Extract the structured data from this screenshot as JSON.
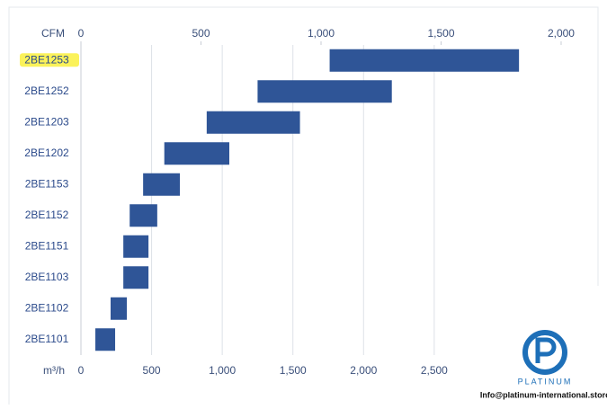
{
  "chart_data": {
    "type": "range-bar",
    "categories": [
      "2BE1253",
      "2BE1252",
      "2BE1203",
      "2BE1202",
      "2BE1153",
      "2BE1152",
      "2BE1151",
      "2BE1103",
      "2BE1102",
      "2BE1101"
    ],
    "start": [
      1760,
      1250,
      890,
      590,
      440,
      345,
      300,
      300,
      210,
      102
    ],
    "end": [
      3100,
      2200,
      1550,
      1050,
      700,
      540,
      478,
      478,
      325,
      242
    ],
    "color": "#2f5597",
    "highlight": "2BE1253",
    "xlabel": "m³/h",
    "xlim": [
      0,
      3500
    ],
    "xticks": [
      0,
      500,
      {
        "value": 1000,
        "label": "1,000"
      },
      {
        "value": 1500,
        "label": "1,500"
      },
      {
        "value": 2000,
        "label": "2,000"
      },
      {
        "value": 2500,
        "label": "2,500"
      }
    ],
    "x2label": "CFM",
    "x2lim": [
      0,
      2060
    ],
    "x2ticks": [
      0,
      500,
      {
        "value": 1000,
        "label": "1,000"
      },
      {
        "value": 1500,
        "label": "1,500"
      },
      {
        "value": 2000,
        "label": "2,000"
      }
    ],
    "grid": true
  },
  "watermark": {
    "brand": "PLATINUM",
    "email": "Info@platinum-international.store"
  }
}
